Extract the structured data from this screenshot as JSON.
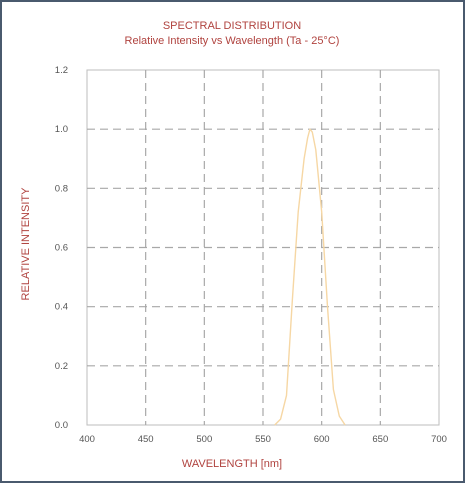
{
  "chart_data": {
    "type": "line",
    "title": "SPECTRAL DISTRIBUTION",
    "subtitle": "Relative Intensity vs Wavelength (Ta - 25°C)",
    "xlabel": "WAVELENGTH [nm]",
    "ylabel": "RELATIVE INTENSITY",
    "xlim": [
      400,
      700
    ],
    "ylim": [
      0,
      1.2
    ],
    "xticks": [
      "400",
      "450",
      "500",
      "550",
      "600",
      "650",
      "700"
    ],
    "yticks": [
      "0.0",
      "0.2",
      "0.4",
      "0.6",
      "0.8",
      "1.0",
      "1.2"
    ],
    "grid": true,
    "series": [
      {
        "color": "#f6d7a4",
        "x": [
          560,
          565,
          570,
          575,
          580,
          585,
          588,
          590,
          592,
          595,
          600,
          605,
          610,
          615,
          620
        ],
        "y": [
          0.0,
          0.02,
          0.1,
          0.42,
          0.72,
          0.9,
          0.97,
          1.0,
          0.99,
          0.93,
          0.72,
          0.4,
          0.12,
          0.03,
          0.0
        ]
      }
    ]
  }
}
